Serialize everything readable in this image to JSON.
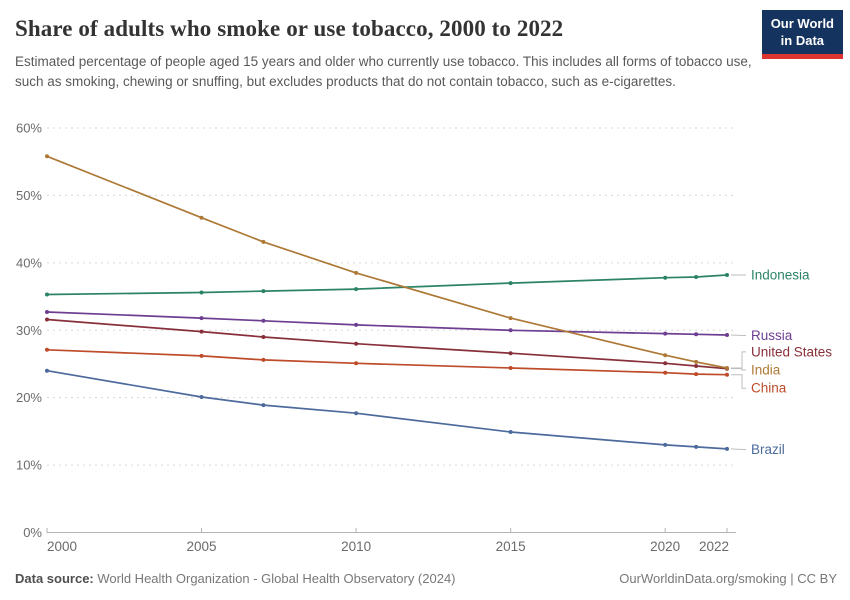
{
  "header": {
    "title": "Share of adults who smoke or use tobacco, 2000 to 2022",
    "subtitle": "Estimated percentage of people aged 15 years and older who currently use tobacco. This includes all forms of tobacco use, such as smoking, chewing or snuffing, but excludes products that do not contain tobacco, such as e-cigarettes."
  },
  "logo": {
    "line1": "Our World",
    "line2": "in Data"
  },
  "footer": {
    "source_label": "Data source:",
    "source_text": " World Health Organization - Global Health Observatory (2024)",
    "credit": "OurWorldinData.org/smoking | CC BY"
  },
  "chart_data": {
    "type": "line",
    "title": "Share of adults who smoke or use tobacco, 2000 to 2022",
    "xlabel": "",
    "ylabel": "",
    "unit": "%",
    "x": [
      2000,
      2005,
      2007,
      2010,
      2015,
      2020,
      2021,
      2022
    ],
    "xlim": [
      2000,
      2022
    ],
    "ylim": [
      0,
      60
    ],
    "xticks": [
      2000,
      2005,
      2010,
      2015,
      2020,
      2022
    ],
    "yticks": [
      0,
      10,
      20,
      30,
      40,
      50,
      60
    ],
    "ytick_suffix": "%",
    "grid": "horizontal-dashed",
    "legend_position": "right-edge-labels",
    "series": [
      {
        "name": "Indonesia",
        "color": "#2C8465",
        "values": [
          35.3,
          35.6,
          35.8,
          36.1,
          37.0,
          37.8,
          37.9,
          38.2
        ],
        "label_anchor": 38.2
      },
      {
        "name": "Russia",
        "color": "#6D3E91",
        "values": [
          32.7,
          31.8,
          31.4,
          30.8,
          30.0,
          29.5,
          29.4,
          29.3
        ],
        "label_anchor": 29.2
      },
      {
        "name": "United States",
        "color": "#883039",
        "values": [
          31.6,
          29.8,
          29.0,
          28.0,
          26.6,
          25.1,
          24.7,
          24.3
        ],
        "label_anchor": 26.8
      },
      {
        "name": "India",
        "color": "#AE7936",
        "values": [
          55.8,
          46.7,
          43.1,
          38.5,
          31.8,
          26.3,
          25.3,
          24.4
        ],
        "label_anchor": 24.1
      },
      {
        "name": "China",
        "color": "#BE4B29",
        "values": [
          27.1,
          26.2,
          25.6,
          25.1,
          24.4,
          23.7,
          23.5,
          23.4
        ],
        "label_anchor": 21.4
      },
      {
        "name": "Brazil",
        "color": "#4C6A9C",
        "values": [
          24.0,
          20.1,
          18.9,
          17.7,
          14.9,
          13.0,
          12.7,
          12.4
        ],
        "label_anchor": 12.3
      }
    ]
  }
}
